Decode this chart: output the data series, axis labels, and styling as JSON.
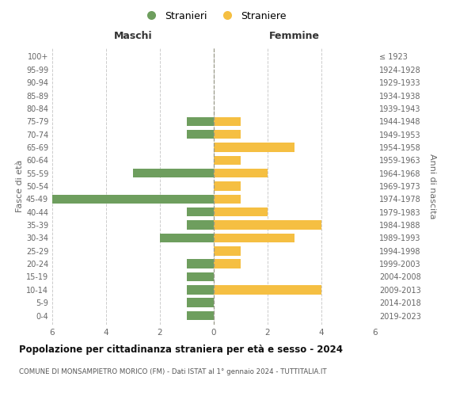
{
  "age_groups": [
    "100+",
    "95-99",
    "90-94",
    "85-89",
    "80-84",
    "75-79",
    "70-74",
    "65-69",
    "60-64",
    "55-59",
    "50-54",
    "45-49",
    "40-44",
    "35-39",
    "30-34",
    "25-29",
    "20-24",
    "15-19",
    "10-14",
    "5-9",
    "0-4"
  ],
  "birth_years": [
    "≤ 1923",
    "1924-1928",
    "1929-1933",
    "1934-1938",
    "1939-1943",
    "1944-1948",
    "1949-1953",
    "1954-1958",
    "1959-1963",
    "1964-1968",
    "1969-1973",
    "1974-1978",
    "1979-1983",
    "1984-1988",
    "1989-1993",
    "1994-1998",
    "1999-2003",
    "2004-2008",
    "2009-2013",
    "2014-2018",
    "2019-2023"
  ],
  "males": [
    0,
    0,
    0,
    0,
    0,
    1,
    1,
    0,
    0,
    3,
    0,
    6,
    1,
    1,
    2,
    0,
    1,
    1,
    1,
    1,
    1
  ],
  "females": [
    0,
    0,
    0,
    0,
    0,
    1,
    1,
    3,
    1,
    2,
    1,
    1,
    2,
    4,
    3,
    1,
    1,
    0,
    4,
    0,
    0
  ],
  "male_color": "#6e9e5e",
  "female_color": "#f5bf42",
  "title": "Popolazione per cittadinanza straniera per età e sesso - 2024",
  "subtitle": "COMUNE DI MONSAMPIETRO MORICO (FM) - Dati ISTAT al 1° gennaio 2024 - TUTTITALIA.IT",
  "xlabel_left": "Maschi",
  "xlabel_right": "Femmine",
  "ylabel_left": "Fasce di età",
  "ylabel_right": "Anni di nascita",
  "legend_males": "Stranieri",
  "legend_females": "Straniere",
  "xlim": 6,
  "background_color": "#ffffff",
  "grid_color": "#cccccc",
  "bar_height": 0.7
}
